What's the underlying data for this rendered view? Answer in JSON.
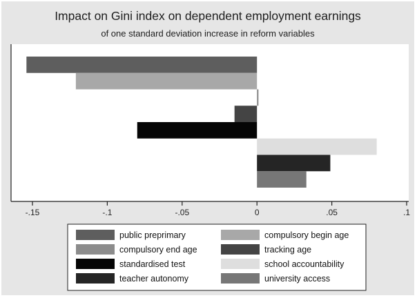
{
  "chart_data": {
    "type": "bar",
    "orientation": "horizontal",
    "title": "Impact on Gini index on dependent employment earnings",
    "subtitle": "of one standard deviation increase in reform variables",
    "xlabel": "",
    "ylabel": "",
    "xlim": [
      -0.155,
      0.1
    ],
    "x_ticks": [
      -0.15,
      -0.1,
      -0.05,
      0,
      0.05,
      0.1
    ],
    "x_tick_labels": [
      "-.15",
      "-.1",
      "-.05",
      "0",
      ".05",
      ".1"
    ],
    "grid": false,
    "legend_position": "bottom",
    "series": [
      {
        "name": "public preprimary",
        "value": -0.154,
        "color": "#5e5e5e"
      },
      {
        "name": "compulsory begin age",
        "value": -0.121,
        "color": "#a8a8a8"
      },
      {
        "name": "compulsory end age",
        "value": 0.001,
        "color": "#8c8c8c"
      },
      {
        "name": "tracking age",
        "value": -0.015,
        "color": "#444444"
      },
      {
        "name": "standardised test",
        "value": -0.08,
        "color": "#050505"
      },
      {
        "name": "school accountability",
        "value": 0.08,
        "color": "#dedede"
      },
      {
        "name": "teacher autonomy",
        "value": 0.049,
        "color": "#252525"
      },
      {
        "name": "university access",
        "value": 0.033,
        "color": "#777777"
      }
    ]
  }
}
